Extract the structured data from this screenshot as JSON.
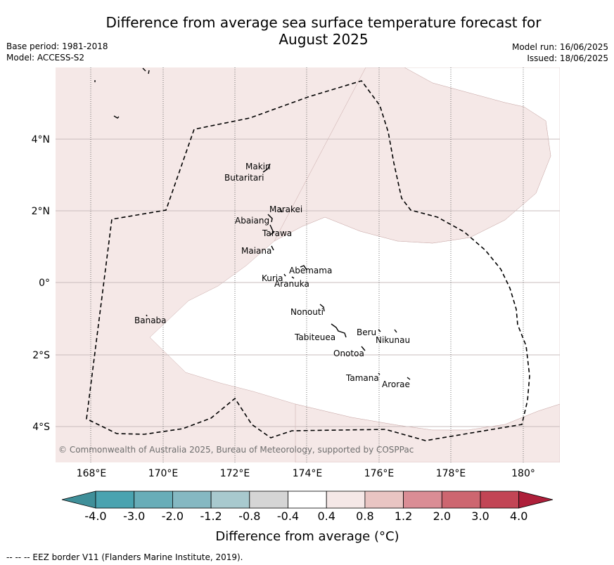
{
  "title": "Difference from average sea surface temperature forecast for\nAugust 2025",
  "meta_left": {
    "base_period": "Base period: 1981-2018",
    "model": "Model: ACCESS-S2"
  },
  "meta_right": {
    "model_run": "Model run: 16/06/2025",
    "issued": "Issued: 18/06/2025"
  },
  "map": {
    "lon_ticks": [
      "168°E",
      "170°E",
      "172°E",
      "174°E",
      "176°E",
      "178°E",
      "180°"
    ],
    "lat_ticks": [
      "4°N",
      "2°N",
      "0°",
      "2°S",
      "4°S"
    ],
    "copyright": "© Commonwealth of Australia 2025, Bureau of Meteorology, supported by COSPPac",
    "islands": [
      "Makin",
      "Butaritari",
      "Marakei",
      "Abaiang",
      "Tarawa",
      "Maiana",
      "Abemama",
      "Kuria",
      "Aranuka",
      "Nonouti",
      "Banaba",
      "Beru",
      "Nikunau",
      "Tabiteuea",
      "Onotoa",
      "Tamana",
      "Arorae"
    ],
    "background_color": "#f5e8e7",
    "eez_line_style": "dashed black"
  },
  "colorbar": {
    "ticks": [
      "-4.0",
      "-3.0",
      "-2.0",
      "-1.2",
      "-0.8",
      "-0.4",
      "0.4",
      "0.8",
      "1.2",
      "2.0",
      "3.0",
      "4.0"
    ],
    "colors": [
      "#3f8f99",
      "#4aa3b0",
      "#68adb8",
      "#85b8c2",
      "#a8c9ce",
      "#d5d5d5",
      "#ffffff",
      "#f5e8e7",
      "#e9c5c3",
      "#da8d95",
      "#cd6670",
      "#c24555",
      "#ae1f3a"
    ],
    "label": "Difference from average (°C)"
  },
  "footnote": "-- -- -- EEZ border V11 (Flanders Marine Institute, 2019)."
}
